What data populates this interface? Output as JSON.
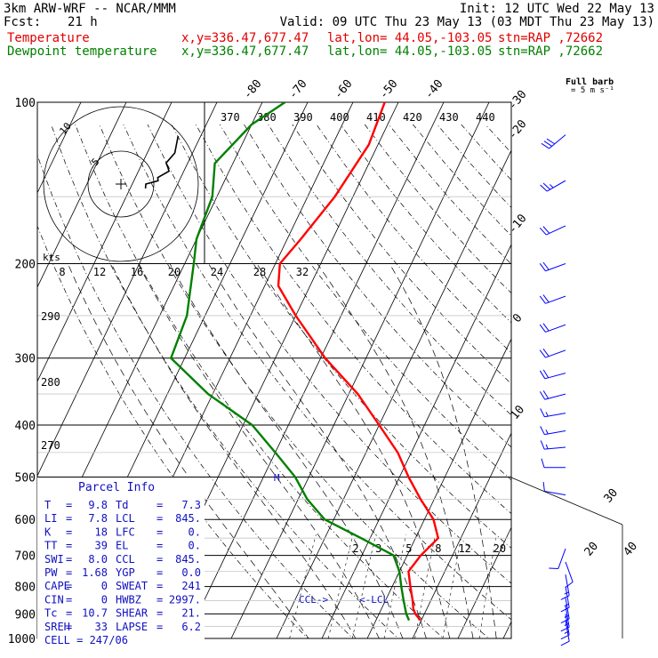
{
  "header": {
    "model": "3km ARW-WRF -- NCAR/MMM",
    "init": "Init: 12 UTC Wed 22 May 13",
    "fcst_label": "Fcst:",
    "fcst_value": "21 h",
    "valid": "Valid: 09 UTC Thu 23 May 13 (03 MDT Thu 23 May 13)",
    "temp_label": "Temperature",
    "dewp_label": "Dewpoint temperature",
    "xy": "x,y=336.47,677.47",
    "latlon": "lat,lon= 44.05,-103.05",
    "stn": "stn=RAP ,72662"
  },
  "colors": {
    "temperature": "#ff0000",
    "dewpoint": "#008000",
    "wind": "#0000ff"
  },
  "barb_title": "Full barb",
  "barb_units": "= 5 m s⁻¹",
  "hodograph": {
    "speed_label": "kts",
    "rings": [
      "5",
      "10"
    ]
  },
  "parcel_info": {
    "title": "Parcel Info",
    "rows": [
      {
        "l1": "T",
        "v1": "9.8",
        "l2": "Td",
        "v2": "7.3"
      },
      {
        "l1": "LI",
        "v1": "7.8",
        "l2": "LCL",
        "v2": "845."
      },
      {
        "l1": "K",
        "v1": "18",
        "l2": "LFC",
        "v2": "0."
      },
      {
        "l1": "TT",
        "v1": "39",
        "l2": "EL",
        "v2": "0."
      },
      {
        "l1": "SWI",
        "v1": "8.0",
        "l2": "CCL",
        "v2": "845."
      },
      {
        "l1": "PW",
        "v1": "1.68",
        "l2": "YGP",
        "v2": "0.0"
      },
      {
        "l1": "CAPE",
        "v1": "0",
        "l2": "SWEAT",
        "v2": "241"
      },
      {
        "l1": "CIN",
        "v1": "0",
        "l2": "HWBZ",
        "v2": "2997."
      },
      {
        "l1": "Tc",
        "v1": "10.7",
        "l2": "SHEAR",
        "v2": "21."
      },
      {
        "l1": "SREH",
        "v1": "33",
        "l2": "LAPSE",
        "v2": "6.2"
      }
    ],
    "cell": "CELL = 247/06"
  },
  "annotations": {
    "ccl": "CCL->",
    "lcl": "<-LCL",
    "m_marker": "M"
  },
  "chart_data": {
    "type": "line",
    "pressure_ticks": [
      "100",
      "200",
      "300",
      "400",
      "500",
      "600",
      "700",
      "800",
      "900",
      "1000"
    ],
    "isotherm_labels": [
      "-80",
      "-70",
      "-60",
      "-50",
      "-40",
      "-30",
      "-20",
      "-10",
      "0",
      "10",
      "20",
      "30",
      "40"
    ],
    "theta_labels": [
      "370",
      "380",
      "390",
      "400",
      "410",
      "420",
      "430",
      "440"
    ],
    "theta_labels_lower": [
      "290",
      "280",
      "270"
    ],
    "mixing_ratio_labels": [
      "2",
      "3",
      "5",
      "8",
      "12",
      "20"
    ],
    "hodo_speed_labels": [
      "8",
      "12",
      "16",
      "20",
      "24",
      "28",
      "32"
    ],
    "series": [
      {
        "name": "Temperature",
        "points": [
          [
            100,
            -53
          ],
          [
            120,
            -52
          ],
          [
            150,
            -54
          ],
          [
            180,
            -57
          ],
          [
            200,
            -59
          ],
          [
            220,
            -57
          ],
          [
            250,
            -50
          ],
          [
            300,
            -39
          ],
          [
            350,
            -28
          ],
          [
            400,
            -20
          ],
          [
            450,
            -13
          ],
          [
            500,
            -8
          ],
          [
            550,
            -3
          ],
          [
            600,
            2
          ],
          [
            650,
            5
          ],
          [
            700,
            3
          ],
          [
            750,
            2
          ],
          [
            800,
            4
          ],
          [
            850,
            6
          ],
          [
            880,
            7
          ],
          [
            900,
            8
          ],
          [
            925,
            9.8
          ]
        ]
      },
      {
        "name": "Dewpoint temperature",
        "points": [
          [
            100,
            -75
          ],
          [
            110,
            -80
          ],
          [
            130,
            -84
          ],
          [
            150,
            -81
          ],
          [
            180,
            -80
          ],
          [
            200,
            -78
          ],
          [
            250,
            -74
          ],
          [
            300,
            -73
          ],
          [
            350,
            -61
          ],
          [
            400,
            -48
          ],
          [
            450,
            -40
          ],
          [
            500,
            -33
          ],
          [
            550,
            -28
          ],
          [
            600,
            -22
          ],
          [
            650,
            -12
          ],
          [
            700,
            -3
          ],
          [
            750,
            0
          ],
          [
            800,
            2
          ],
          [
            850,
            4
          ],
          [
            900,
            6
          ],
          [
            925,
            7.3
          ]
        ]
      }
    ],
    "wind_barbs": [
      {
        "p": 115,
        "dir": 230,
        "kt": 30
      },
      {
        "p": 140,
        "dir": 240,
        "kt": 25
      },
      {
        "p": 170,
        "dir": 245,
        "kt": 20
      },
      {
        "p": 200,
        "dir": 250,
        "kt": 20
      },
      {
        "p": 230,
        "dir": 250,
        "kt": 20
      },
      {
        "p": 260,
        "dir": 250,
        "kt": 20
      },
      {
        "p": 290,
        "dir": 250,
        "kt": 20
      },
      {
        "p": 320,
        "dir": 255,
        "kt": 20
      },
      {
        "p": 350,
        "dir": 255,
        "kt": 20
      },
      {
        "p": 380,
        "dir": 260,
        "kt": 15
      },
      {
        "p": 410,
        "dir": 260,
        "kt": 15
      },
      {
        "p": 440,
        "dir": 265,
        "kt": 15
      },
      {
        "p": 480,
        "dir": 270,
        "kt": 10
      },
      {
        "p": 540,
        "dir": 280,
        "kt": 10
      },
      {
        "p": 680,
        "dir": 200,
        "kt": 10
      },
      {
        "p": 720,
        "dir": 160,
        "kt": 10
      },
      {
        "p": 760,
        "dir": 170,
        "kt": 15
      },
      {
        "p": 800,
        "dir": 170,
        "kt": 15
      },
      {
        "p": 840,
        "dir": 170,
        "kt": 15
      },
      {
        "p": 870,
        "dir": 170,
        "kt": 15
      },
      {
        "p": 900,
        "dir": 170,
        "kt": 15
      },
      {
        "p": 925,
        "dir": 170,
        "kt": 10
      }
    ],
    "ylim": [
      100,
      1000
    ],
    "yscale": "log"
  }
}
